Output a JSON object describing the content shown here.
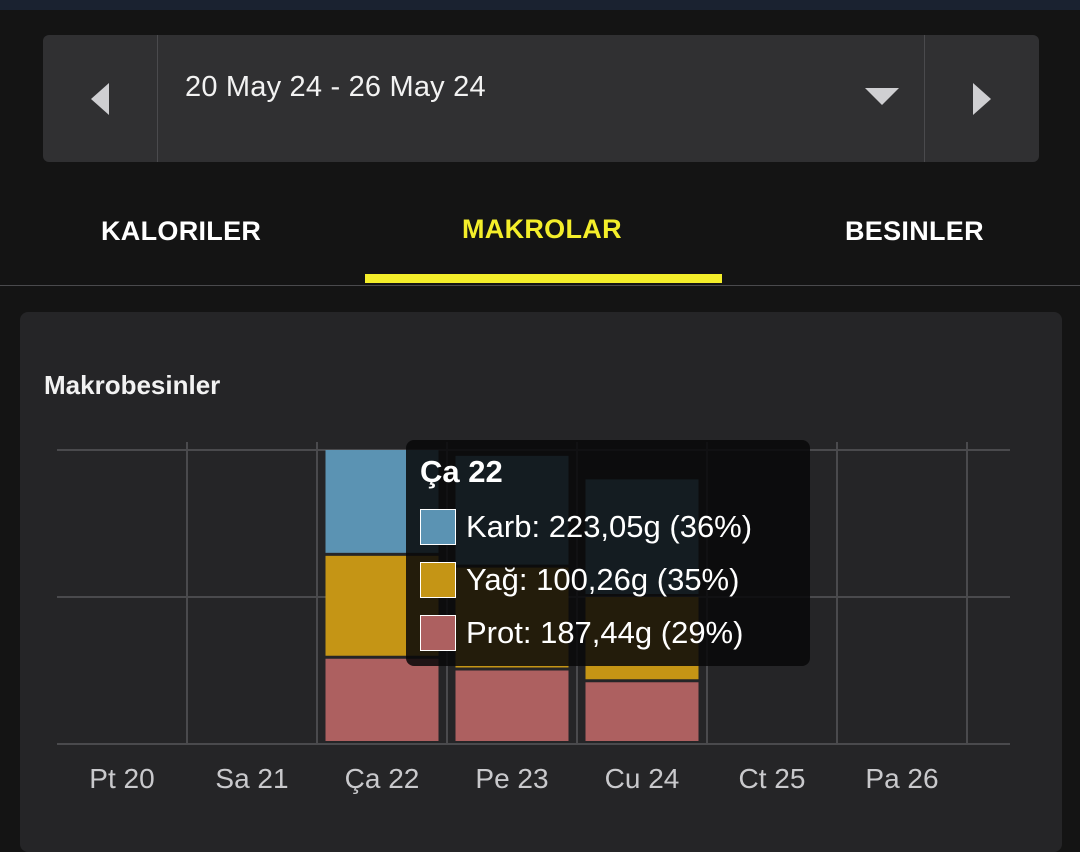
{
  "date_range": {
    "label": "20 May 24 - 26 May 24"
  },
  "tabs": [
    {
      "label": "KALORILER",
      "active": false
    },
    {
      "label": "MAKROLAR",
      "active": true
    },
    {
      "label": "BESINLER",
      "active": false
    }
  ],
  "card": {
    "title": "Makrobesinler"
  },
  "colors": {
    "carb": "#5b93b3",
    "fat": "#c59515",
    "protein": "#ad6060",
    "accent": "#f4ee2a"
  },
  "chart_data": {
    "type": "bar",
    "stacked": true,
    "categories": [
      "Pt 20",
      "Sa 21",
      "Ça 22",
      "Pe 23",
      "Cu 24",
      "Ct 25",
      "Pa 26"
    ],
    "series": [
      {
        "name": "Prot",
        "color": "#ad6060",
        "values": [
          0,
          0,
          29,
          25,
          21,
          0,
          0
        ]
      },
      {
        "name": "Yağ",
        "color": "#c59515",
        "values": [
          0,
          0,
          35,
          35,
          29,
          0,
          0
        ]
      },
      {
        "name": "Karb",
        "color": "#5b93b3",
        "values": [
          0,
          0,
          36,
          38,
          40,
          0,
          0
        ]
      }
    ],
    "ylim": [
      0,
      100
    ],
    "grid": true,
    "legend": "none"
  },
  "tooltip": {
    "title": "Ça 22",
    "rows": [
      {
        "label": "Karb: 223,05g (36%)",
        "color": "#5b93b3"
      },
      {
        "label": "Yağ: 100,26g (35%)",
        "color": "#c59515"
      },
      {
        "label": "Prot: 187,44g (29%)",
        "color": "#ad6060"
      }
    ]
  }
}
